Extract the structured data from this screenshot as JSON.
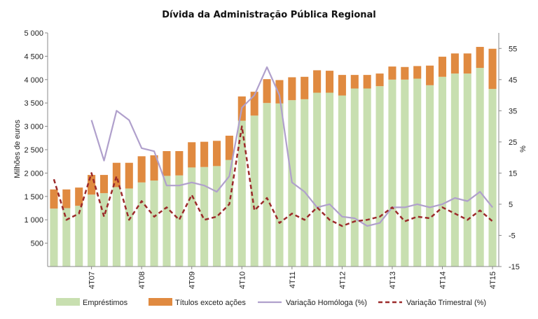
{
  "chart_data": {
    "type": "bar",
    "title": "Dívida da Administração Pública Regional",
    "ylabel": "Milhões de euros",
    "y2label": "%",
    "ylim": [
      0,
      5000
    ],
    "y2lim": [
      -15,
      60
    ],
    "yticks": [
      "500",
      "1 000",
      "1 500",
      "2 000",
      "2 500",
      "3 000",
      "3 500",
      "4 000",
      "4 500",
      "5 000"
    ],
    "y2ticks": [
      "-15",
      "-5",
      "5",
      "15",
      "25",
      "35",
      "45",
      "55"
    ],
    "xtick_labels": [
      {
        "index": 3,
        "label": "4T07"
      },
      {
        "index": 7,
        "label": "4T08"
      },
      {
        "index": 11,
        "label": "4T09"
      },
      {
        "index": 15,
        "label": "4T10"
      },
      {
        "index": 19,
        "label": "4T11"
      },
      {
        "index": 23,
        "label": "4T12"
      },
      {
        "index": 27,
        "label": "4T13"
      },
      {
        "index": 31,
        "label": "4T14"
      },
      {
        "index": 35,
        "label": "4T15"
      }
    ],
    "legend_position": "bottom",
    "grid": false,
    "colors": {
      "emprestimos": "#c8dfb0",
      "titulos": "#e08a40",
      "homologa": "#b0a0cc",
      "trimestral": "#9c2b2b"
    },
    "series": [
      {
        "name": "Empréstimos",
        "kind": "bar-stack",
        "values": [
          1240,
          1250,
          1300,
          1540,
          1570,
          1700,
          1670,
          1800,
          1840,
          1940,
          1950,
          2120,
          2130,
          2150,
          2280,
          3120,
          3230,
          3500,
          3490,
          3560,
          3580,
          3720,
          3720,
          3660,
          3810,
          3810,
          3860,
          4000,
          4000,
          4020,
          3880,
          4060,
          4130,
          4130,
          4250,
          3800
        ]
      },
      {
        "name": "Títulos exceto ações",
        "kind": "bar-stack",
        "values": [
          410,
          400,
          390,
          420,
          390,
          520,
          550,
          560,
          540,
          530,
          520,
          540,
          540,
          540,
          520,
          520,
          510,
          510,
          500,
          490,
          480,
          480,
          470,
          440,
          290,
          290,
          270,
          280,
          270,
          270,
          420,
          430,
          430,
          430,
          450,
          860
        ]
      },
      {
        "name": "Variação Homóloga (%)",
        "kind": "line",
        "axis": "y2",
        "values": [
          null,
          null,
          null,
          32,
          19,
          35,
          32,
          23,
          22,
          11,
          11,
          12,
          11,
          9,
          14,
          36,
          40,
          49,
          40,
          12,
          9,
          4,
          5,
          1,
          0.5,
          -2,
          -1,
          4,
          4,
          5,
          4,
          5,
          7,
          6,
          9,
          4
        ]
      },
      {
        "name": "Variação Trimestral (%)",
        "kind": "dashed-line",
        "axis": "y2",
        "values": [
          13,
          0,
          2,
          15,
          1,
          14,
          0,
          6,
          1,
          4,
          0,
          8,
          0,
          1,
          5,
          30,
          3,
          7,
          -1,
          2,
          0,
          4,
          0,
          -2,
          -0.5,
          0,
          1,
          4,
          -0.5,
          1,
          0.5,
          4,
          2,
          0,
          3,
          -0.5
        ]
      }
    ]
  }
}
